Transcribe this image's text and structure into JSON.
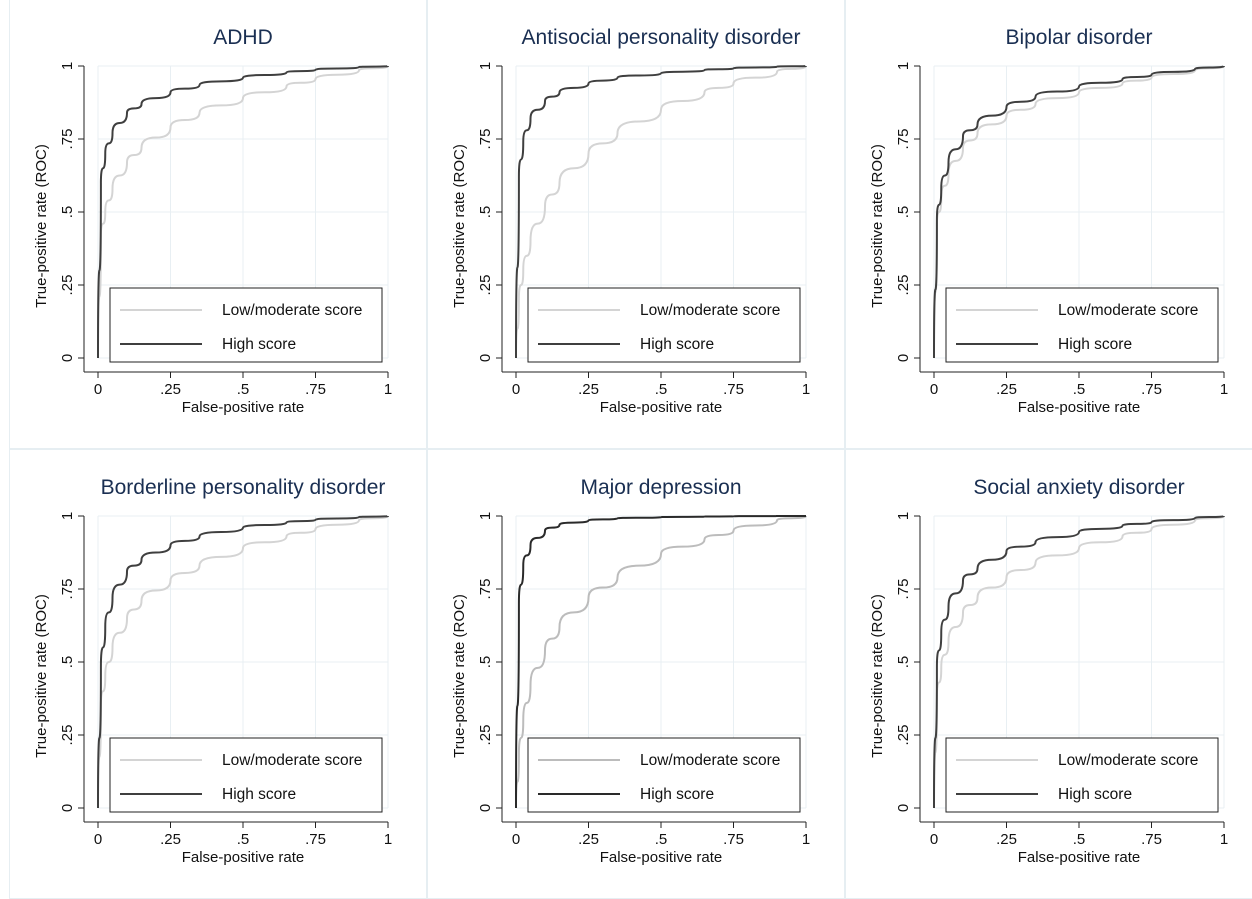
{
  "chart_data": [
    {
      "type": "line",
      "title": "ADHD",
      "xlabel": "False-positive rate",
      "ylabel": "True-positive rate (ROC)",
      "xlim": [
        0,
        1
      ],
      "ylim": [
        0,
        1
      ],
      "xticks": [
        "0",
        ".25",
        ".5",
        ".75",
        "1"
      ],
      "yticks": [
        "0",
        ".25",
        ".5",
        ".75",
        "1"
      ],
      "grid": true,
      "legend": "bottom-inside",
      "series": [
        {
          "name": "Low/moderate score",
          "color": "#d4d4d4",
          "x": [
            0,
            0.01,
            0.025,
            0.05,
            0.1,
            0.15,
            0.25,
            0.35,
            0.5,
            0.65,
            0.75,
            0.9,
            1
          ],
          "y": [
            0,
            0.42,
            0.5,
            0.58,
            0.67,
            0.72,
            0.79,
            0.84,
            0.89,
            0.93,
            0.955,
            0.985,
            1
          ]
        },
        {
          "name": "High score",
          "color": "#3f3f3f",
          "x": [
            0,
            0.01,
            0.025,
            0.05,
            0.1,
            0.15,
            0.25,
            0.35,
            0.5,
            0.65,
            0.75,
            0.9,
            1
          ],
          "y": [
            0,
            0.6,
            0.7,
            0.77,
            0.84,
            0.87,
            0.91,
            0.935,
            0.96,
            0.978,
            0.987,
            0.996,
            1
          ]
        }
      ]
    },
    {
      "type": "line",
      "title": "Antisocial personality disorder",
      "xlabel": "False-positive rate",
      "ylabel": "True-positive rate (ROC)",
      "xlim": [
        0,
        1
      ],
      "ylim": [
        0,
        1
      ],
      "xticks": [
        "0",
        ".25",
        ".5",
        ".75",
        "1"
      ],
      "yticks": [
        "0",
        ".25",
        ".5",
        ".75",
        "1"
      ],
      "grid": true,
      "legend": "bottom-inside",
      "series": [
        {
          "name": "Low/moderate score",
          "color": "#d4d4d4",
          "x": [
            0,
            0.01,
            0.025,
            0.05,
            0.1,
            0.15,
            0.25,
            0.35,
            0.5,
            0.65,
            0.75,
            0.9,
            1
          ],
          "y": [
            0,
            0.2,
            0.3,
            0.4,
            0.52,
            0.6,
            0.7,
            0.77,
            0.85,
            0.91,
            0.94,
            0.98,
            1
          ]
        },
        {
          "name": "High score",
          "color": "#3f3f3f",
          "x": [
            0,
            0.01,
            0.025,
            0.05,
            0.1,
            0.15,
            0.25,
            0.35,
            0.5,
            0.65,
            0.75,
            0.9,
            1
          ],
          "y": [
            0,
            0.62,
            0.74,
            0.82,
            0.88,
            0.91,
            0.94,
            0.96,
            0.975,
            0.986,
            0.992,
            0.998,
            1
          ]
        }
      ]
    },
    {
      "type": "line",
      "title": "Bipolar disorder",
      "xlabel": "False-positive rate",
      "ylabel": "True-positive rate (ROC)",
      "xlim": [
        0,
        1
      ],
      "ylim": [
        0,
        1
      ],
      "xticks": [
        "0",
        ".25",
        ".5",
        ".75",
        "1"
      ],
      "yticks": [
        "0",
        ".25",
        ".5",
        ".75",
        "1"
      ],
      "grid": true,
      "legend": "bottom-inside",
      "series": [
        {
          "name": "Low/moderate score",
          "color": "#d4d4d4",
          "x": [
            0,
            0.01,
            0.025,
            0.05,
            0.1,
            0.15,
            0.25,
            0.35,
            0.5,
            0.65,
            0.75,
            0.9,
            1
          ],
          "y": [
            0,
            0.45,
            0.55,
            0.63,
            0.72,
            0.77,
            0.83,
            0.87,
            0.91,
            0.94,
            0.96,
            0.985,
            1
          ]
        },
        {
          "name": "High score",
          "color": "#3f3f3f",
          "x": [
            0,
            0.01,
            0.025,
            0.05,
            0.1,
            0.15,
            0.25,
            0.35,
            0.5,
            0.65,
            0.75,
            0.9,
            1
          ],
          "y": [
            0,
            0.47,
            0.58,
            0.67,
            0.76,
            0.8,
            0.86,
            0.895,
            0.93,
            0.955,
            0.97,
            0.99,
            1
          ]
        }
      ]
    },
    {
      "type": "line",
      "title": "Borderline personality disorder",
      "xlabel": "False-positive rate",
      "ylabel": "True-positive rate (ROC)",
      "xlim": [
        0,
        1
      ],
      "ylim": [
        0,
        1
      ],
      "xticks": [
        "0",
        ".25",
        ".5",
        ".75",
        "1"
      ],
      "yticks": [
        "0",
        ".25",
        ".5",
        ".75",
        "1"
      ],
      "grid": true,
      "legend": "bottom-inside",
      "series": [
        {
          "name": "Low/moderate score",
          "color": "#d4d4d4",
          "x": [
            0,
            0.01,
            0.025,
            0.05,
            0.1,
            0.15,
            0.25,
            0.35,
            0.5,
            0.65,
            0.75,
            0.9,
            1
          ],
          "y": [
            0,
            0.35,
            0.45,
            0.55,
            0.65,
            0.71,
            0.78,
            0.83,
            0.89,
            0.93,
            0.955,
            0.985,
            1
          ]
        },
        {
          "name": "High score",
          "color": "#3f3f3f",
          "x": [
            0,
            0.01,
            0.025,
            0.05,
            0.1,
            0.15,
            0.25,
            0.35,
            0.5,
            0.65,
            0.75,
            0.9,
            1
          ],
          "y": [
            0,
            0.48,
            0.62,
            0.72,
            0.81,
            0.85,
            0.9,
            0.93,
            0.96,
            0.978,
            0.987,
            0.996,
            1
          ]
        }
      ]
    },
    {
      "type": "line",
      "title": "Major depression",
      "xlabel": "False-positive rate",
      "ylabel": "True-positive rate (ROC)",
      "xlim": [
        0,
        1
      ],
      "ylim": [
        0,
        1
      ],
      "xticks": [
        "0",
        ".25",
        ".5",
        ".75",
        "1"
      ],
      "yticks": [
        "0",
        ".25",
        ".5",
        ".75",
        "1"
      ],
      "grid": true,
      "legend": "bottom-inside",
      "series": [
        {
          "name": "Low/moderate score",
          "color": "#bcbcbc",
          "x": [
            0,
            0.01,
            0.025,
            0.05,
            0.1,
            0.15,
            0.25,
            0.35,
            0.5,
            0.65,
            0.75,
            0.9,
            1
          ],
          "y": [
            0,
            0.18,
            0.3,
            0.42,
            0.54,
            0.62,
            0.72,
            0.79,
            0.87,
            0.92,
            0.95,
            0.985,
            1
          ]
        },
        {
          "name": "High score",
          "color": "#2a2a2a",
          "x": [
            0,
            0.01,
            0.025,
            0.05,
            0.1,
            0.15,
            0.25,
            0.35,
            0.5,
            0.65,
            0.75,
            0.9,
            1
          ],
          "y": [
            0,
            0.7,
            0.83,
            0.9,
            0.95,
            0.97,
            0.985,
            0.992,
            0.996,
            0.998,
            0.999,
            1,
            1
          ]
        }
      ]
    },
    {
      "type": "line",
      "title": "Social anxiety disorder",
      "xlabel": "False-positive rate",
      "ylabel": "True-positive rate (ROC)",
      "xlim": [
        0,
        1
      ],
      "ylim": [
        0,
        1
      ],
      "xticks": [
        "0",
        ".25",
        ".5",
        ".75",
        "1"
      ],
      "yticks": [
        "0",
        ".25",
        ".5",
        ".75",
        "1"
      ],
      "grid": true,
      "legend": "bottom-inside",
      "series": [
        {
          "name": "Low/moderate score",
          "color": "#d4d4d4",
          "x": [
            0,
            0.01,
            0.025,
            0.05,
            0.1,
            0.15,
            0.25,
            0.35,
            0.5,
            0.65,
            0.75,
            0.9,
            1
          ],
          "y": [
            0,
            0.38,
            0.48,
            0.57,
            0.67,
            0.72,
            0.79,
            0.84,
            0.89,
            0.93,
            0.955,
            0.985,
            1
          ]
        },
        {
          "name": "High score",
          "color": "#3f3f3f",
          "x": [
            0,
            0.01,
            0.025,
            0.05,
            0.1,
            0.15,
            0.25,
            0.35,
            0.5,
            0.65,
            0.75,
            0.9,
            1
          ],
          "y": [
            0,
            0.48,
            0.6,
            0.69,
            0.78,
            0.82,
            0.88,
            0.91,
            0.945,
            0.967,
            0.979,
            0.993,
            1
          ]
        }
      ]
    }
  ]
}
